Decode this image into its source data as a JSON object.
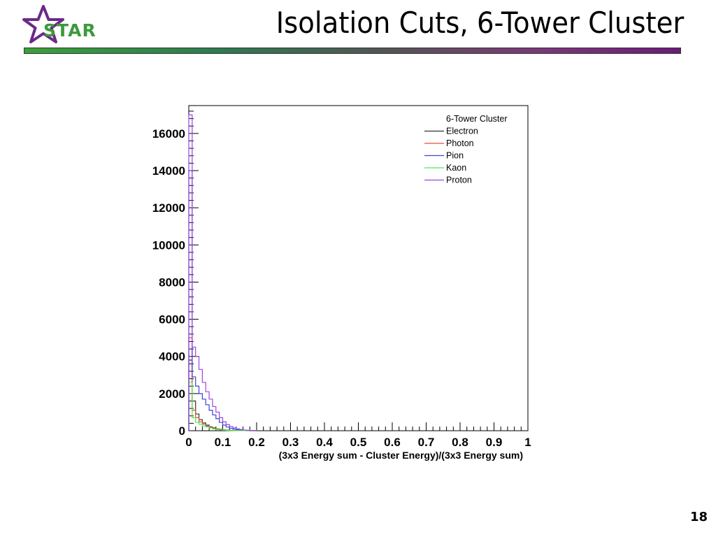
{
  "slide": {
    "title": "Isolation Cuts, 6-Tower Cluster",
    "logo_text": "STAR",
    "page_number": "18"
  },
  "colors": {
    "title_bar_start": "#3aa13a",
    "title_bar_end": "#6a1b78",
    "logo_star": "#6a2a8a",
    "logo_text": "#3c9a3c"
  },
  "chart_data": {
    "type": "line",
    "style": "step-histogram",
    "title": "",
    "xlabel": "(3x3 Energy sum - Cluster Energy)/(3x3 Energy sum)",
    "ylabel": "",
    "xlim": [
      0,
      1
    ],
    "ylim": [
      0,
      17500
    ],
    "bin_width": 0.01,
    "x_ticks": [
      "0",
      "0.1",
      "0.2",
      "0.3",
      "0.4",
      "0.5",
      "0.6",
      "0.7",
      "0.8",
      "0.9",
      "1"
    ],
    "y_ticks": [
      "0",
      "2000",
      "4000",
      "6000",
      "8000",
      "10000",
      "12000",
      "14000",
      "16000"
    ],
    "grid": false,
    "legend": {
      "header": "6-Tower Cluster",
      "position": "top-right",
      "entries": [
        "Electron",
        "Photon",
        "Pion",
        "Kaon",
        "Proton"
      ]
    },
    "series": [
      {
        "name": "Electron",
        "color": "#333333",
        "values": [
          3800,
          1600,
          900,
          600,
          420,
          300,
          210,
          150,
          100,
          70,
          45,
          30,
          20,
          12,
          8,
          5,
          3,
          2,
          1,
          0
        ]
      },
      {
        "name": "Photon",
        "color": "#e0503c",
        "values": [
          5000,
          1100,
          700,
          480,
          350,
          250,
          180,
          120,
          80,
          50,
          30,
          20,
          12,
          8,
          5,
          3,
          2,
          1,
          0,
          0
        ]
      },
      {
        "name": "Pion",
        "color": "#3c46d2",
        "values": [
          14000,
          2900,
          2400,
          2000,
          1700,
          1400,
          1100,
          850,
          650,
          450,
          300,
          200,
          130,
          80,
          50,
          30,
          15,
          8,
          4,
          2
        ]
      },
      {
        "name": "Kaon",
        "color": "#50e650",
        "values": [
          2600,
          700,
          450,
          350,
          260,
          200,
          150,
          100,
          70,
          45,
          30,
          20,
          12,
          8,
          5,
          3,
          2,
          1,
          0,
          0
        ]
      },
      {
        "name": "Proton",
        "color": "#9b46e0",
        "values": [
          17000,
          4500,
          4000,
          3300,
          2600,
          2100,
          1700,
          1300,
          1000,
          700,
          480,
          330,
          220,
          150,
          100,
          65,
          40,
          25,
          15,
          8
        ]
      }
    ]
  }
}
